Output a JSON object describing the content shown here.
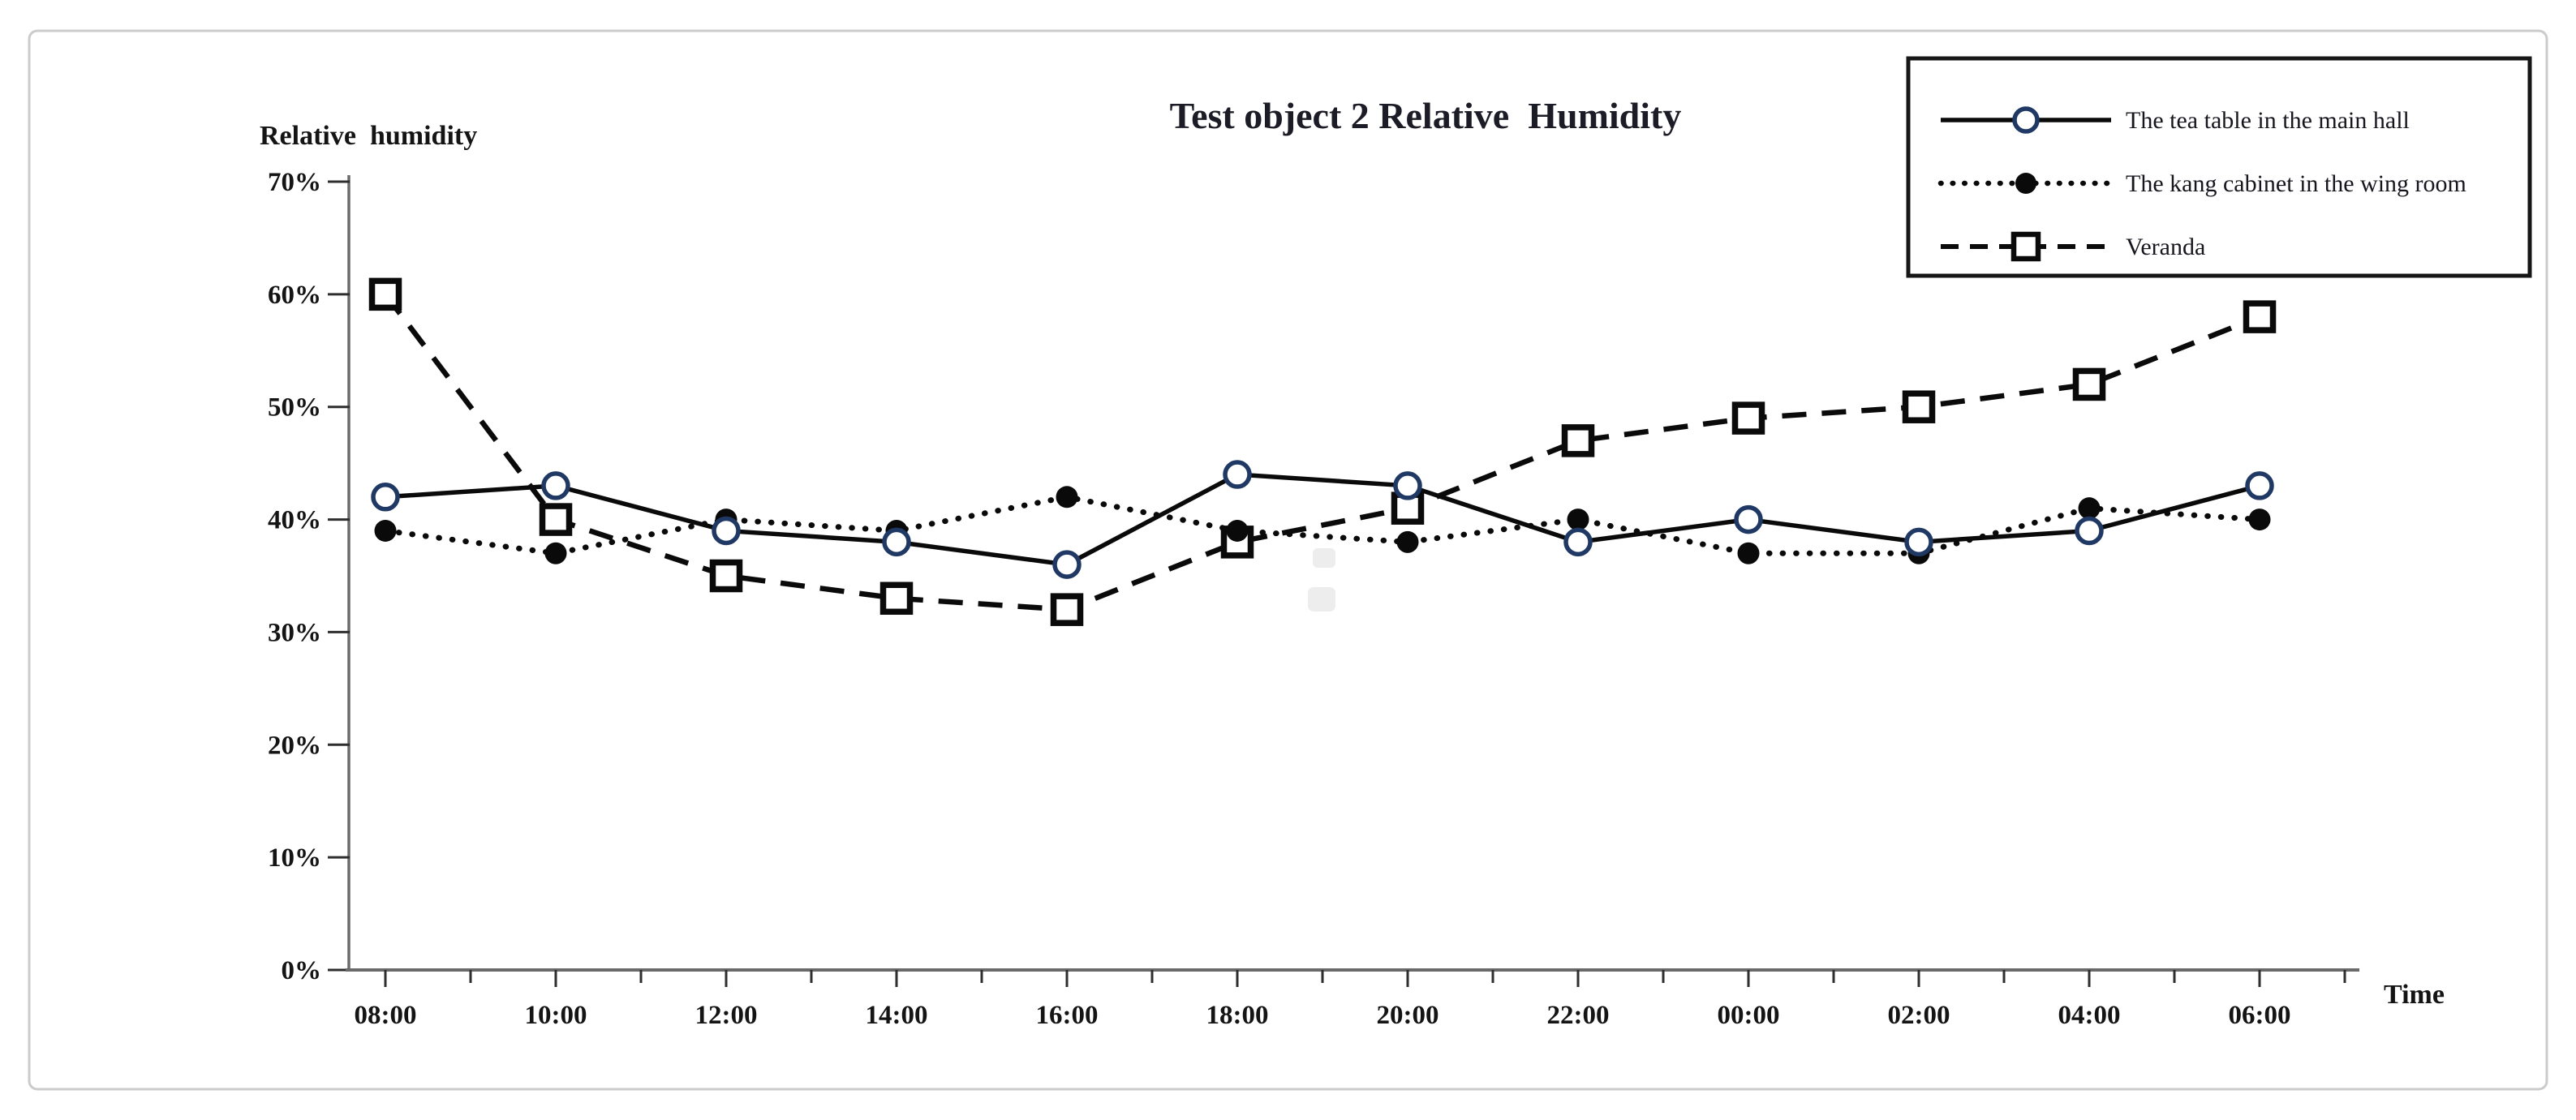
{
  "figure": {
    "border_color": "#cbcbcb",
    "background": "#ffffff"
  },
  "chart_data": {
    "type": "line",
    "title": "Test object 2 Relative  Humidity",
    "ylabel": "Relative  humidity",
    "xlabel": "Time",
    "categories": [
      "08:00",
      "10:00",
      "12:00",
      "14:00",
      "16:00",
      "18:00",
      "20:00",
      "22:00",
      "00:00",
      "02:00",
      "04:00",
      "06:00"
    ],
    "y_tick_labels": [
      "0%",
      "10%",
      "20%",
      "30%",
      "40%",
      "50%",
      "60%",
      "70%"
    ],
    "ylim": [
      0,
      70
    ],
    "y_tick_step": 10,
    "grid": false,
    "legend_position": "top-right",
    "series": [
      {
        "name": "The tea table in the main hall",
        "marker": "open-circle",
        "line_style": "solid",
        "values": [
          42,
          43,
          39,
          38,
          36,
          44,
          43,
          38,
          40,
          38,
          39,
          43
        ]
      },
      {
        "name": "The kang cabinet in the wing room",
        "marker": "filled-circle",
        "line_style": "dotted",
        "values": [
          39,
          37,
          40,
          39,
          42,
          39,
          38,
          40,
          37,
          37,
          41,
          40
        ]
      },
      {
        "name": "Veranda",
        "marker": "open-square",
        "line_style": "dashed",
        "values": [
          60,
          40,
          35,
          33,
          32,
          38,
          41,
          47,
          49,
          50,
          52,
          58
        ]
      }
    ],
    "colors": {
      "line": "#0a0a0a",
      "circle_ring": "#1f3864",
      "text": "#141414",
      "axis_line": "#6a6a6a",
      "tick_mark": "#2e2e2e"
    }
  }
}
